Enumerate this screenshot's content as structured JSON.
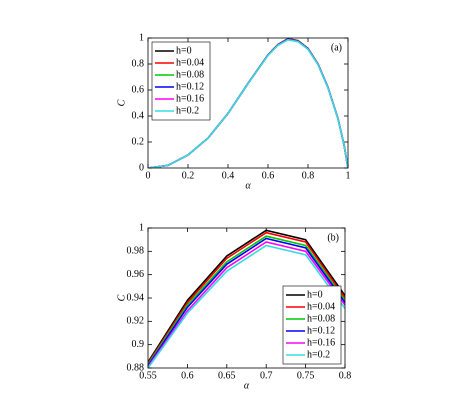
{
  "chart_data": [
    {
      "type": "line",
      "annotation": "(a)",
      "x_label": "α",
      "y_label": "C",
      "x": [
        0,
        0.1,
        0.2,
        0.3,
        0.4,
        0.5,
        0.6,
        0.65,
        0.7,
        0.75,
        0.8,
        0.85,
        0.9,
        0.95,
        0.98,
        1
      ],
      "series": [
        {
          "name": "h=0",
          "color": "#000000",
          "values": [
            0,
            0.02,
            0.1,
            0.23,
            0.42,
            0.65,
            0.87,
            0.95,
            0.995,
            0.98,
            0.92,
            0.8,
            0.62,
            0.38,
            0.18,
            0
          ]
        },
        {
          "name": "h=0.04",
          "color": "#ff0000",
          "values": [
            0,
            0.02,
            0.1,
            0.23,
            0.42,
            0.65,
            0.87,
            0.95,
            0.994,
            0.979,
            0.919,
            0.8,
            0.62,
            0.38,
            0.18,
            0
          ]
        },
        {
          "name": "h=0.08",
          "color": "#00cc00",
          "values": [
            0,
            0.02,
            0.1,
            0.23,
            0.42,
            0.65,
            0.87,
            0.949,
            0.993,
            0.978,
            0.918,
            0.799,
            0.619,
            0.38,
            0.18,
            0
          ]
        },
        {
          "name": "h=0.12",
          "color": "#0000ff",
          "values": [
            0,
            0.02,
            0.1,
            0.23,
            0.42,
            0.65,
            0.869,
            0.948,
            0.991,
            0.976,
            0.917,
            0.798,
            0.618,
            0.379,
            0.18,
            0
          ]
        },
        {
          "name": "h=0.16",
          "color": "#ff00ff",
          "values": [
            0,
            0.02,
            0.1,
            0.23,
            0.42,
            0.649,
            0.868,
            0.946,
            0.988,
            0.974,
            0.915,
            0.797,
            0.617,
            0.379,
            0.18,
            0
          ]
        },
        {
          "name": "h=0.2",
          "color": "#33dddd",
          "values": [
            0,
            0.02,
            0.1,
            0.23,
            0.42,
            0.649,
            0.866,
            0.944,
            0.986,
            0.971,
            0.913,
            0.795,
            0.616,
            0.378,
            0.18,
            0
          ]
        }
      ],
      "xlim": [
        0,
        1
      ],
      "xticks": [
        0,
        0.2,
        0.4,
        0.6,
        0.8,
        1
      ],
      "ylim": [
        0,
        1
      ],
      "yticks": [
        0,
        0.2,
        0.4,
        0.6,
        0.8,
        1
      ],
      "legend": "upper left"
    },
    {
      "type": "line",
      "annotation": "(b)",
      "x_label": "α",
      "y_label": "C",
      "x": [
        0.55,
        0.6,
        0.65,
        0.7,
        0.75,
        0.8
      ],
      "series": [
        {
          "name": "h=0",
          "color": "#000000",
          "values": [
            0.885,
            0.938,
            0.976,
            0.998,
            0.99,
            0.942
          ]
        },
        {
          "name": "h=0.04",
          "color": "#ff0000",
          "values": [
            0.884,
            0.936,
            0.974,
            0.996,
            0.988,
            0.94
          ]
        },
        {
          "name": "h=0.08",
          "color": "#00cc00",
          "values": [
            0.883,
            0.934,
            0.971,
            0.993,
            0.985,
            0.938
          ]
        },
        {
          "name": "h=0.12",
          "color": "#0000ff",
          "values": [
            0.882,
            0.932,
            0.969,
            0.991,
            0.983,
            0.936
          ]
        },
        {
          "name": "h=0.16",
          "color": "#ff00ff",
          "values": [
            0.881,
            0.929,
            0.966,
            0.988,
            0.98,
            0.934
          ]
        },
        {
          "name": "h=0.2",
          "color": "#33dddd",
          "values": [
            0.88,
            0.927,
            0.963,
            0.985,
            0.977,
            0.931
          ]
        }
      ],
      "xlim": [
        0.55,
        0.8
      ],
      "xticks": [
        0.55,
        0.6,
        0.65,
        0.7,
        0.75,
        0.8
      ],
      "ylim": [
        0.88,
        1
      ],
      "yticks": [
        0.88,
        0.9,
        0.92,
        0.94,
        0.96,
        0.98,
        1
      ],
      "legend": "lower right"
    }
  ]
}
